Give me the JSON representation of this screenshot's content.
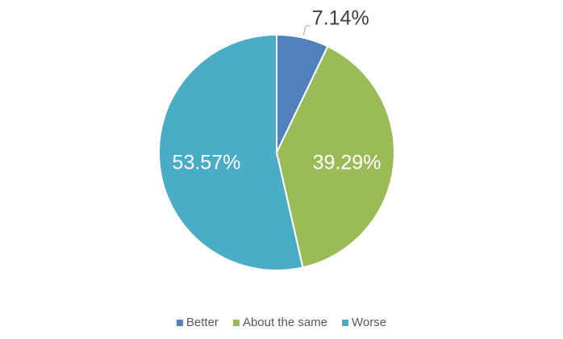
{
  "chart_data": {
    "type": "pie",
    "categories": [
      "Better",
      "About the same",
      "Worse"
    ],
    "values": [
      7.14,
      39.29,
      53.57
    ],
    "value_labels": [
      "7.14%",
      "39.29%",
      "53.57%"
    ],
    "colors": [
      "#4f81bd",
      "#9bbb59",
      "#4bacc6"
    ],
    "legend": "bottom"
  }
}
